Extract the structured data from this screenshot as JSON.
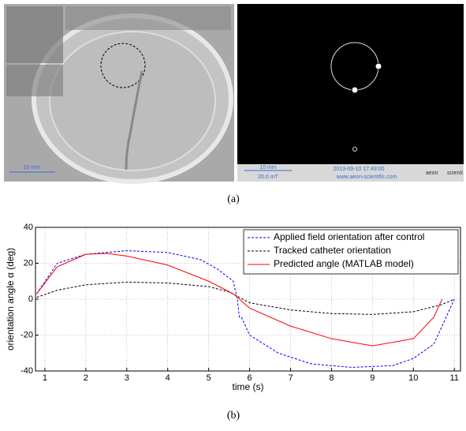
{
  "figure": {
    "caption_a": "(a)",
    "caption_b": "(b)",
    "left_image": {
      "scale_label": "10 mm"
    },
    "right_image": {
      "scale_label": "10 mm",
      "timestamp": "2013-09-10 17:49:00",
      "field": "20.0 mT",
      "website": "www.aeon-scientific.com",
      "brand": "aeon",
      "brand_suffix": "scienti"
    }
  },
  "chart_data": {
    "type": "line",
    "xlabel": "time (s)",
    "ylabel": "orientation angle α (deg)",
    "xlim": [
      0.77,
      11.15
    ],
    "ylim": [
      -40,
      40
    ],
    "xticks": [
      1,
      2,
      3,
      4,
      5,
      6,
      7,
      8,
      9,
      10,
      11
    ],
    "yticks": [
      -40,
      -20,
      0,
      20,
      40
    ],
    "grid": true,
    "legend": "upper right",
    "series": [
      {
        "name": "Applied field orientation after control",
        "color": "#0000ff",
        "linestyle": "dashed",
        "x": [
          0.8,
          1.3,
          2,
          3,
          4,
          4.8,
          5.2,
          5.6,
          5.7,
          5.75,
          5.8,
          6,
          6.7,
          7.5,
          8.5,
          9.5,
          10,
          10.5,
          10.8,
          11
        ],
        "values": [
          3,
          20,
          25,
          27,
          26,
          22,
          17,
          10,
          0,
          -10,
          -10,
          -20,
          -30,
          -36,
          -38,
          -37,
          -33,
          -25,
          -10,
          0
        ]
      },
      {
        "name": "Tracked catheter orientation",
        "color": "#000000",
        "linestyle": "dashed",
        "x": [
          0.8,
          1.3,
          2,
          3,
          4,
          5,
          5.5,
          6,
          7,
          8,
          9,
          10,
          10.7,
          11
        ],
        "values": [
          1,
          5,
          8,
          9.5,
          9,
          7,
          4,
          -2,
          -6,
          -8,
          -8.5,
          -7,
          -3,
          0
        ]
      },
      {
        "name": "Predicted angle (MATLAB model)",
        "color": "#ff0000",
        "linestyle": "solid",
        "x": [
          0.8,
          1.3,
          2,
          2.5,
          3,
          4,
          5,
          5.6,
          6,
          7,
          8,
          9,
          10,
          10.5,
          10.7
        ],
        "values": [
          3,
          18,
          25,
          25.5,
          24,
          19,
          10,
          3,
          -5,
          -15,
          -22,
          -26,
          -22,
          -10,
          0
        ]
      }
    ]
  }
}
